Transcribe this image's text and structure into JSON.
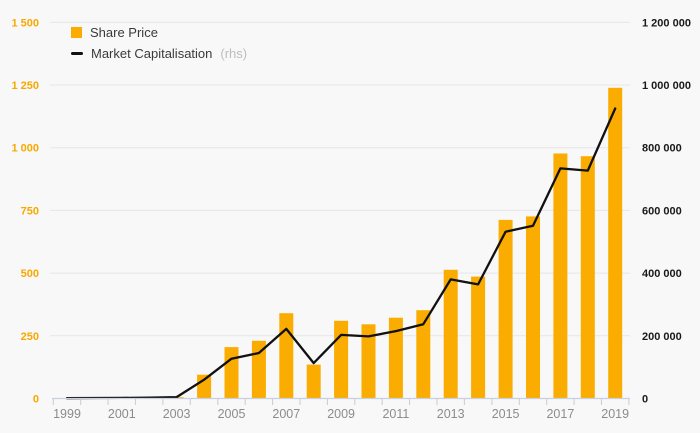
{
  "page": {
    "background": "#F8F8F8"
  },
  "legend": {
    "share_price_label": "Share Price",
    "market_cap_label": "Market Capitalisation",
    "market_cap_suffix": "(rhs)"
  },
  "colors": {
    "bar": "#FAAD00",
    "line": "#111111",
    "background": "#F8F8F8",
    "grid": "#E6E6E9",
    "axis": "#C9CFE0",
    "left_axis_text": "#F9A800",
    "right_axis_text": "#1A1A1A",
    "x_axis_text": "#8C8C8C",
    "legend_text": "#3A3A3A",
    "rhs_text": "#BDBDBD"
  },
  "chart_data": {
    "type": "bar+line combo",
    "title": "",
    "x": [
      1999,
      2000,
      2001,
      2002,
      2003,
      2004,
      2005,
      2006,
      2007,
      2008,
      2009,
      2010,
      2011,
      2012,
      2013,
      2014,
      2015,
      2016,
      2017,
      2018,
      2019
    ],
    "x_axis_labels": [
      "1999",
      "2001",
      "2003",
      "2005",
      "2007",
      "2009",
      "2011",
      "2013",
      "2015",
      "2017",
      "2019"
    ],
    "series": [
      {
        "name": "Share Price",
        "type": "bar",
        "axis": "left",
        "values": [
          2,
          2,
          2,
          3,
          5,
          95,
          205,
          230,
          340,
          135,
          310,
          296,
          322,
          352,
          513,
          486,
          712,
          726,
          977,
          966,
          1239
        ]
      },
      {
        "name": "Market Capitalisation (rhs)",
        "type": "line",
        "axis": "right",
        "values": [
          1000,
          1500,
          2000,
          3000,
          4500,
          60000,
          127000,
          145000,
          222000,
          113000,
          203000,
          198000,
          215000,
          237000,
          380000,
          364000,
          532000,
          551000,
          734000,
          727000,
          925000
        ]
      }
    ],
    "left_axis": {
      "min": 0,
      "max": 1500,
      "tick_step": 250,
      "tick_labels": [
        "0",
        "250",
        "500",
        "750",
        "1 000",
        "1 250",
        "1 500"
      ]
    },
    "right_axis": {
      "min": 0,
      "max": 1200000,
      "tick_step": 200000,
      "tick_labels": [
        "0",
        "200 000",
        "400 000",
        "600 000",
        "800 000",
        "1 000 000",
        "1 200 000"
      ]
    },
    "grid": "horizontal-only",
    "legend_position": "top-left"
  }
}
